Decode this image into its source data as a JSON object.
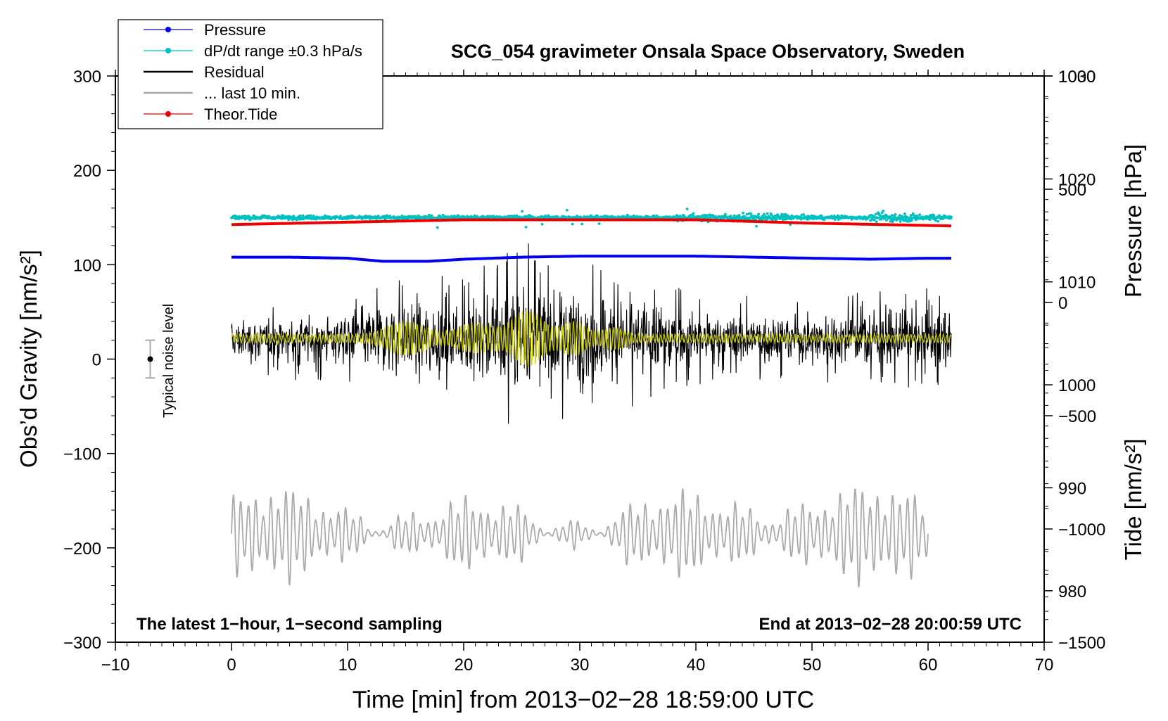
{
  "chart_data": {
    "type": "line",
    "title": "SCG_054 gravimeter Onsala Space Observatory, Sweden",
    "xlabel": "Time [min] from 2013−02−28 18:59:00 UTC",
    "ylabel_left": "Obs’d Gravity [nm/s²]",
    "ylabel_right_top": "Pressure [hPa]",
    "ylabel_right_bottom": "Tide [nm/s²]",
    "xlim": [
      -10,
      70
    ],
    "ylim": [
      -300,
      300
    ],
    "x_ticks": [
      -10,
      0,
      10,
      20,
      30,
      40,
      50,
      60,
      70
    ],
    "x_tick_labels": [
      "−10",
      "0",
      "10",
      "20",
      "30",
      "40",
      "50",
      "60",
      "70"
    ],
    "y_ticks": [
      -300,
      -200,
      -100,
      0,
      100,
      200,
      300
    ],
    "y_tick_labels": [
      "−300",
      "−200",
      "−100",
      "0",
      "100",
      "200",
      "300"
    ],
    "pressure_axis": {
      "range": [
        975,
        1030
      ],
      "ticks": [
        980,
        990,
        1000,
        1010,
        1020,
        1030
      ],
      "tick_labels": [
        "980",
        "990",
        "1000",
        "1010",
        "1020",
        "1030"
      ]
    },
    "tide_axis": {
      "range": [
        -1500,
        1000
      ],
      "ticks": [
        -1500,
        -1000,
        -500,
        0,
        500,
        1000
      ],
      "tick_labels": [
        "−1500",
        "−1000",
        "−500",
        "0",
        "500",
        "1000"
      ]
    },
    "legend": {
      "position": "top-left",
      "entries": [
        {
          "label": "Pressure",
          "color": "#0000ee",
          "marker": true
        },
        {
          "label": "dP/dt range ±0.3 hPa/s",
          "color": "#00c0c0",
          "marker": true
        },
        {
          "label": "Residual",
          "color": "#000000",
          "marker": false
        },
        {
          "label": "... last 10 min.",
          "color": "#aaaaaa",
          "marker": false
        },
        {
          "label": "Theor.Tide",
          "color": "#ee0000",
          "marker": true
        }
      ]
    },
    "series": [
      {
        "name": "Pressure",
        "color": "#0000ee",
        "axis": "pressure",
        "x": [
          0,
          5,
          10,
          13,
          17,
          20,
          25,
          30,
          35,
          40,
          45,
          50,
          55,
          60,
          62
        ],
        "y": [
          1012.4,
          1012.4,
          1012.3,
          1012.0,
          1012.0,
          1012.2,
          1012.4,
          1012.5,
          1012.5,
          1012.5,
          1012.4,
          1012.3,
          1012.2,
          1012.3,
          1012.3
        ]
      },
      {
        "name": "dP/dt range ±0.3 hPa/s",
        "color": "#00c0c0",
        "axis": "gravity",
        "x": [
          0,
          62
        ],
        "y": [
          150,
          150
        ],
        "note": "scatter of 1-second samples with small spread around 150"
      },
      {
        "name": "Residual",
        "color": "#000000",
        "axis": "gravity",
        "x": [
          0,
          5,
          10,
          15,
          20,
          25,
          30,
          35,
          40,
          45,
          50,
          55,
          60,
          62
        ],
        "y": [
          20,
          20,
          22,
          22,
          21,
          23,
          22,
          22,
          21,
          22,
          22,
          22,
          22,
          22
        ],
        "envelope": [
          30,
          35,
          40,
          60,
          55,
          85,
          70,
          60,
          40,
          38,
          40,
          42,
          45,
          45
        ]
      },
      {
        "name": "Residual (smoothed)",
        "color": "#d4d400",
        "axis": "gravity",
        "x": [
          0,
          62
        ],
        "y": [
          22,
          22
        ]
      },
      {
        "name": "... last 10 min.",
        "color": "#aaaaaa",
        "axis": "gravity",
        "x": [
          0,
          60
        ],
        "y": [
          -185,
          -185
        ]
      },
      {
        "name": "Theor.Tide",
        "color": "#ee0000",
        "axis": "tide",
        "x": [
          0,
          20,
          40,
          50,
          62
        ],
        "y": [
          344,
          365,
          365,
          350,
          338
        ]
      }
    ],
    "noise_bar": {
      "x": -7,
      "y": 0,
      "low": -20,
      "high": 20,
      "label": "Typical noise level"
    },
    "annotations": [
      {
        "text": "The latest 1−hour, 1−second sampling",
        "position": "bottom-left"
      },
      {
        "text": "End at 2013−02−28 20:00:59 UTC",
        "position": "bottom-right"
      }
    ]
  }
}
